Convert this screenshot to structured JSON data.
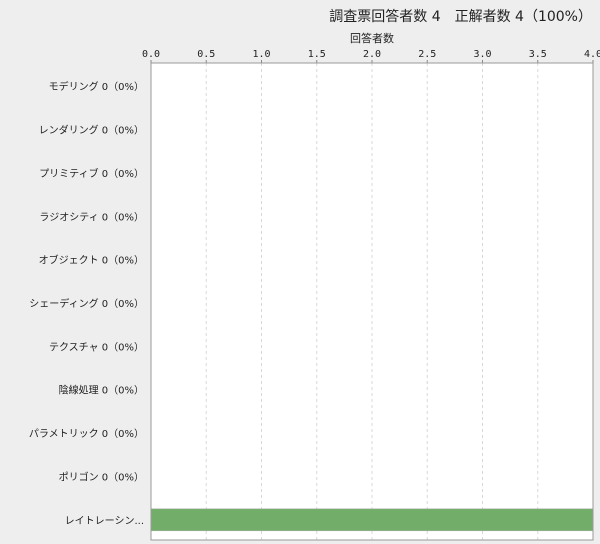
{
  "chart_data": {
    "type": "bar",
    "orientation": "horizontal",
    "title": "調査票回答者数 4　正解者数 4（100%）",
    "xlabel": "回答者数",
    "ylabel": "",
    "xlim": [
      0,
      4
    ],
    "xticks": [
      "0.0",
      "0.5",
      "1.0",
      "1.5",
      "2.0",
      "2.5",
      "3.0",
      "3.5",
      "4.0"
    ],
    "axis_position": "top",
    "grid": true,
    "categories": [
      "モデリング 0（0%）",
      "レンダリング 0（0%）",
      "プリミティブ 0（0%）",
      "ラジオシティ 0（0%）",
      "オブジェクト 0（0%）",
      "シェーディング 0（0%）",
      "テクスチャ 0（0%）",
      "陰線処理 0（0%）",
      "パラメトリック 0（0%）",
      "ポリゴン 0（0%）",
      "レイトレーシン..."
    ],
    "values": [
      0,
      0,
      0,
      0,
      0,
      0,
      0,
      0,
      0,
      0,
      4
    ],
    "bar_color": "#72ae6a"
  }
}
